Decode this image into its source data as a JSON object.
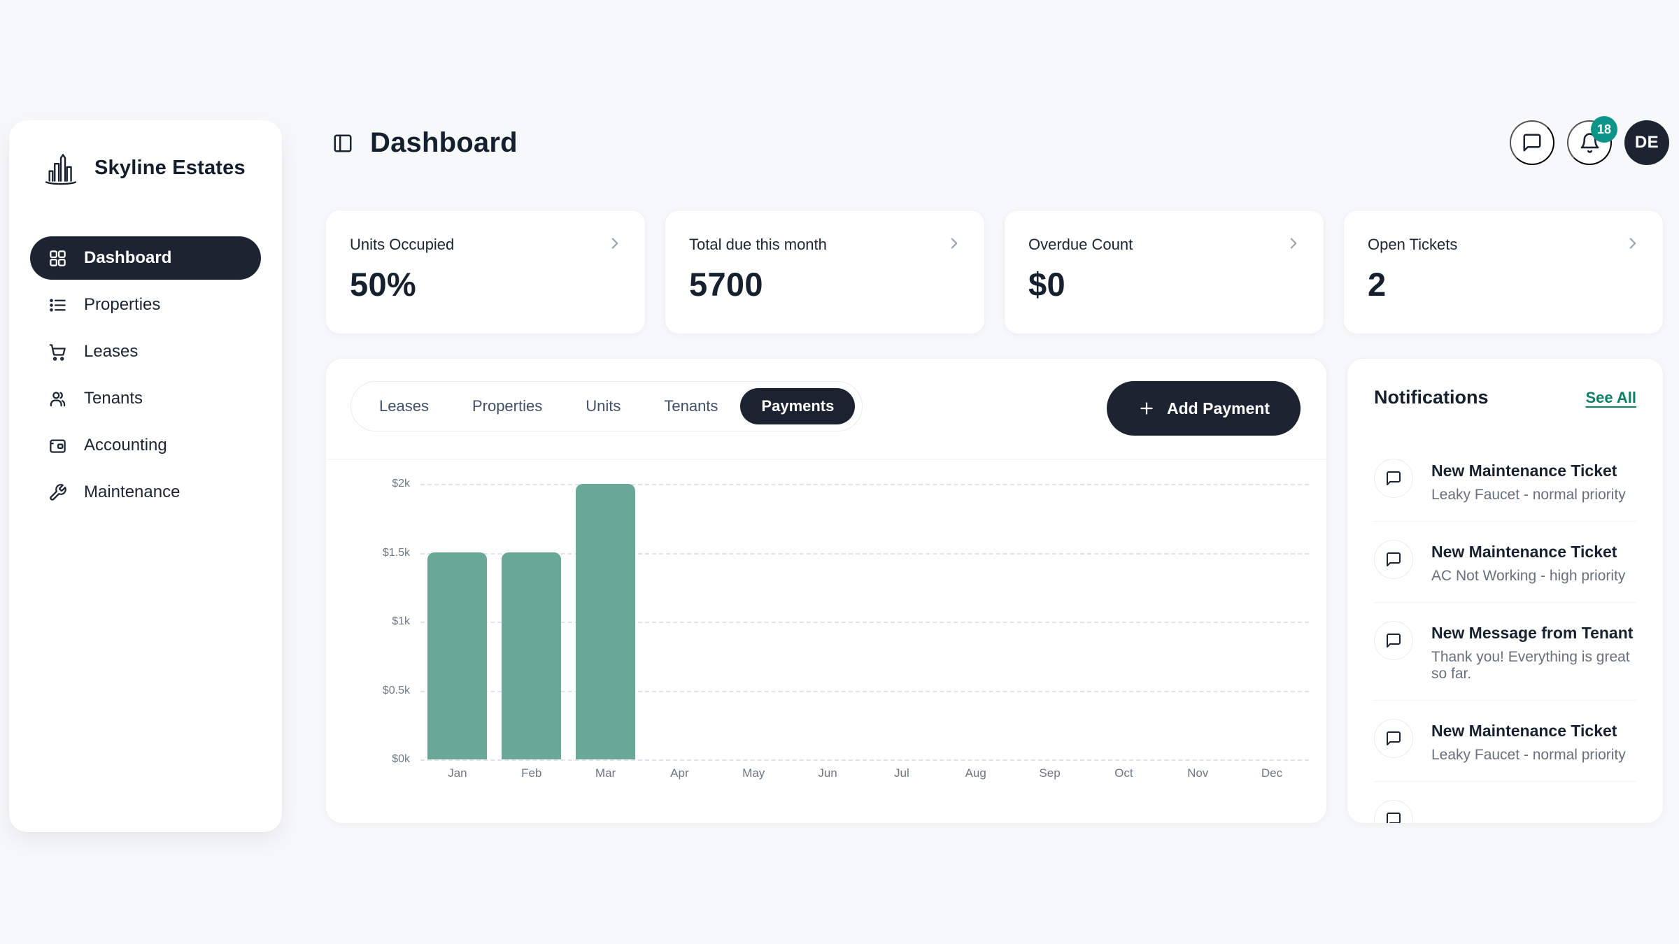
{
  "sidebar": {
    "title": "Skyline Estates",
    "logo_icon": "skyline-buildings-icon",
    "items": [
      {
        "label": "Dashboard",
        "icon": "grid-icon",
        "active": true
      },
      {
        "label": "Properties",
        "icon": "list-icon",
        "active": false
      },
      {
        "label": "Leases",
        "icon": "cart-icon",
        "active": false
      },
      {
        "label": "Tenants",
        "icon": "users-icon",
        "active": false
      },
      {
        "label": "Accounting",
        "icon": "wallet-icon",
        "active": false
      },
      {
        "label": "Maintenance",
        "icon": "wrench-icon",
        "active": false
      }
    ]
  },
  "header": {
    "title": "Dashboard",
    "sidebar_toggle_icon": "panel-left-icon",
    "chat_icon": "message-bubble-icon",
    "bell_icon": "bell-icon",
    "notification_badge": "18",
    "avatar_initials": "DE"
  },
  "stat_cards": [
    {
      "label": "Units Occupied",
      "value": "50%"
    },
    {
      "label": "Total due this month",
      "value": "5700"
    },
    {
      "label": "Overdue Count",
      "value": "$0"
    },
    {
      "label": "Open Tickets",
      "value": "2"
    }
  ],
  "tabs": [
    {
      "label": "Leases",
      "active": false
    },
    {
      "label": "Properties",
      "active": false
    },
    {
      "label": "Units",
      "active": false
    },
    {
      "label": "Tenants",
      "active": false
    },
    {
      "label": "Payments",
      "active": true
    }
  ],
  "add_payment": {
    "label": "Add Payment",
    "icon": "plus-icon"
  },
  "chart_data": {
    "type": "bar",
    "title": "",
    "categories": [
      "Jan",
      "Feb",
      "Mar",
      "Apr",
      "May",
      "Jun",
      "Jul",
      "Aug",
      "Sep",
      "Oct",
      "Nov",
      "Dec"
    ],
    "values": [
      1500,
      1500,
      2000,
      0,
      0,
      0,
      0,
      0,
      0,
      0,
      0,
      0
    ],
    "xlabel": "",
    "ylabel": "",
    "ylim": [
      0,
      2000
    ],
    "ytick_labels": [
      "$0k",
      "$0.5k",
      "$1k",
      "$1.5k",
      "$2k"
    ],
    "grid": "horizontal-dashed",
    "legend": "none",
    "bar_color": "#69a796"
  },
  "notifications": {
    "title": "Notifications",
    "see_all_label": "See All",
    "item_icon": "message-bubble-icon",
    "items": [
      {
        "title": "New Maintenance Ticket",
        "subtitle": "Leaky Faucet - normal priority",
        "partial": false
      },
      {
        "title": "New Maintenance Ticket",
        "subtitle": "AC Not Working - high priority",
        "partial": false
      },
      {
        "title": "New Message from Tenant",
        "subtitle": "Thank you! Everything is great so far.",
        "partial": false
      },
      {
        "title": "New Maintenance Ticket",
        "subtitle": "Leaky Faucet - normal priority",
        "partial": false
      },
      {
        "title": "",
        "subtitle": "",
        "partial": true
      }
    ]
  },
  "colors": {
    "background": "#f7f8fa",
    "surface": "#ffffff",
    "dark_navy": "#1c2432",
    "accent_teal_badge": "#0d9488",
    "link_green": "#0f8068",
    "bar_green": "#69a796",
    "text_primary": "#16202e",
    "text_secondary": "#68707e",
    "gridline": "#e0e4ea"
  }
}
